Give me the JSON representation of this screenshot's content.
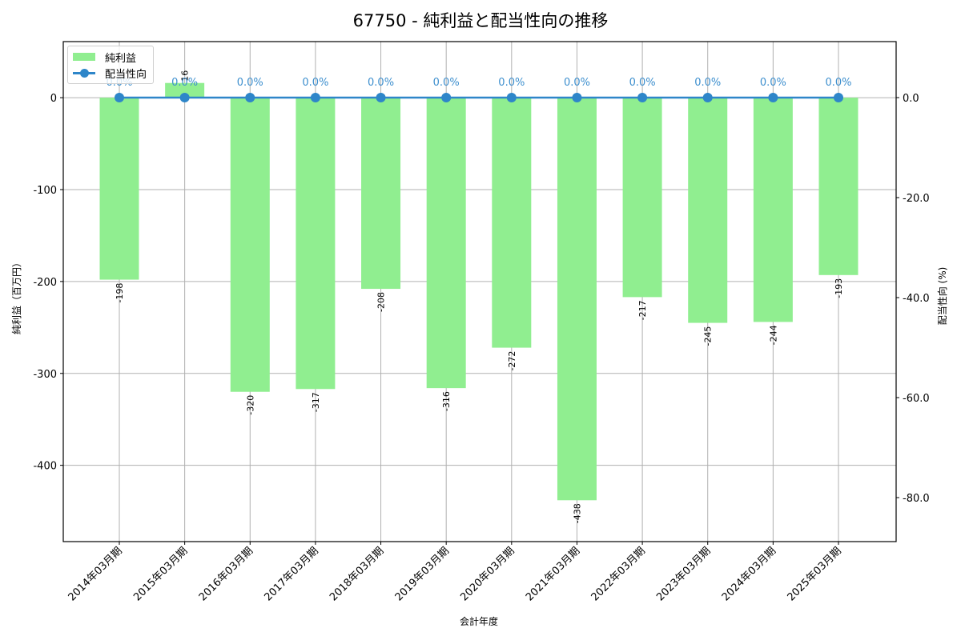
{
  "title": "67750 - 純利益と配当性向の推移",
  "legend": {
    "bar_label": "純利益",
    "line_label": "配当性向"
  },
  "axes": {
    "xlabel": "会計年度",
    "ylabel_left": "純利益（百万円）",
    "ylabel_right": "配当性向 (%)",
    "left_ticks": [
      "0",
      "-100",
      "-200",
      "-300",
      "-400"
    ],
    "right_ticks": [
      "0.0",
      "-20.0",
      "-40.0",
      "-60.0",
      "-80.0"
    ]
  },
  "colors": {
    "bar": "#90ee90",
    "line": "#2e86c9",
    "pct_label": "#3d8fce",
    "grid": "#b0b0b0"
  },
  "chart_data": {
    "type": "bar+line",
    "title": "67750 - 純利益と配当性向の推移",
    "xlabel": "会計年度",
    "categories": [
      "2014年03月期",
      "2015年03月期",
      "2016年03月期",
      "2017年03月期",
      "2018年03月期",
      "2019年03月期",
      "2020年03月期",
      "2021年03月期",
      "2022年03月期",
      "2023年03月期",
      "2024年03月期",
      "2025年03月期"
    ],
    "series": [
      {
        "name": "純利益",
        "type": "bar",
        "axis": "left",
        "ylabel": "純利益（百万円）",
        "values": [
          -198,
          16,
          -320,
          -317,
          -208,
          -316,
          -272,
          -438,
          -217,
          -245,
          -244,
          -193
        ],
        "labels": [
          "-198",
          "16",
          "-320",
          "-317",
          "-208",
          "-316",
          "-272",
          "-438",
          "-217",
          "-245",
          "-244",
          "-193"
        ]
      },
      {
        "name": "配当性向",
        "type": "line",
        "axis": "right",
        "ylabel": "配当性向 (%)",
        "values": [
          0,
          0,
          0,
          0,
          0,
          0,
          0,
          0,
          0,
          0,
          0,
          0
        ],
        "labels": [
          "0.0%",
          "0.0%",
          "0.0%",
          "0.0%",
          "0.0%",
          "0.0%",
          "0.0%",
          "0.0%",
          "0.0%",
          "0.0%",
          "0.0%",
          "0.0%"
        ]
      }
    ],
    "ylim_left": [
      -483,
      61
    ],
    "ylim_right": [
      -88.8,
      11.2
    ],
    "grid": true,
    "legend_position": "upper left"
  }
}
